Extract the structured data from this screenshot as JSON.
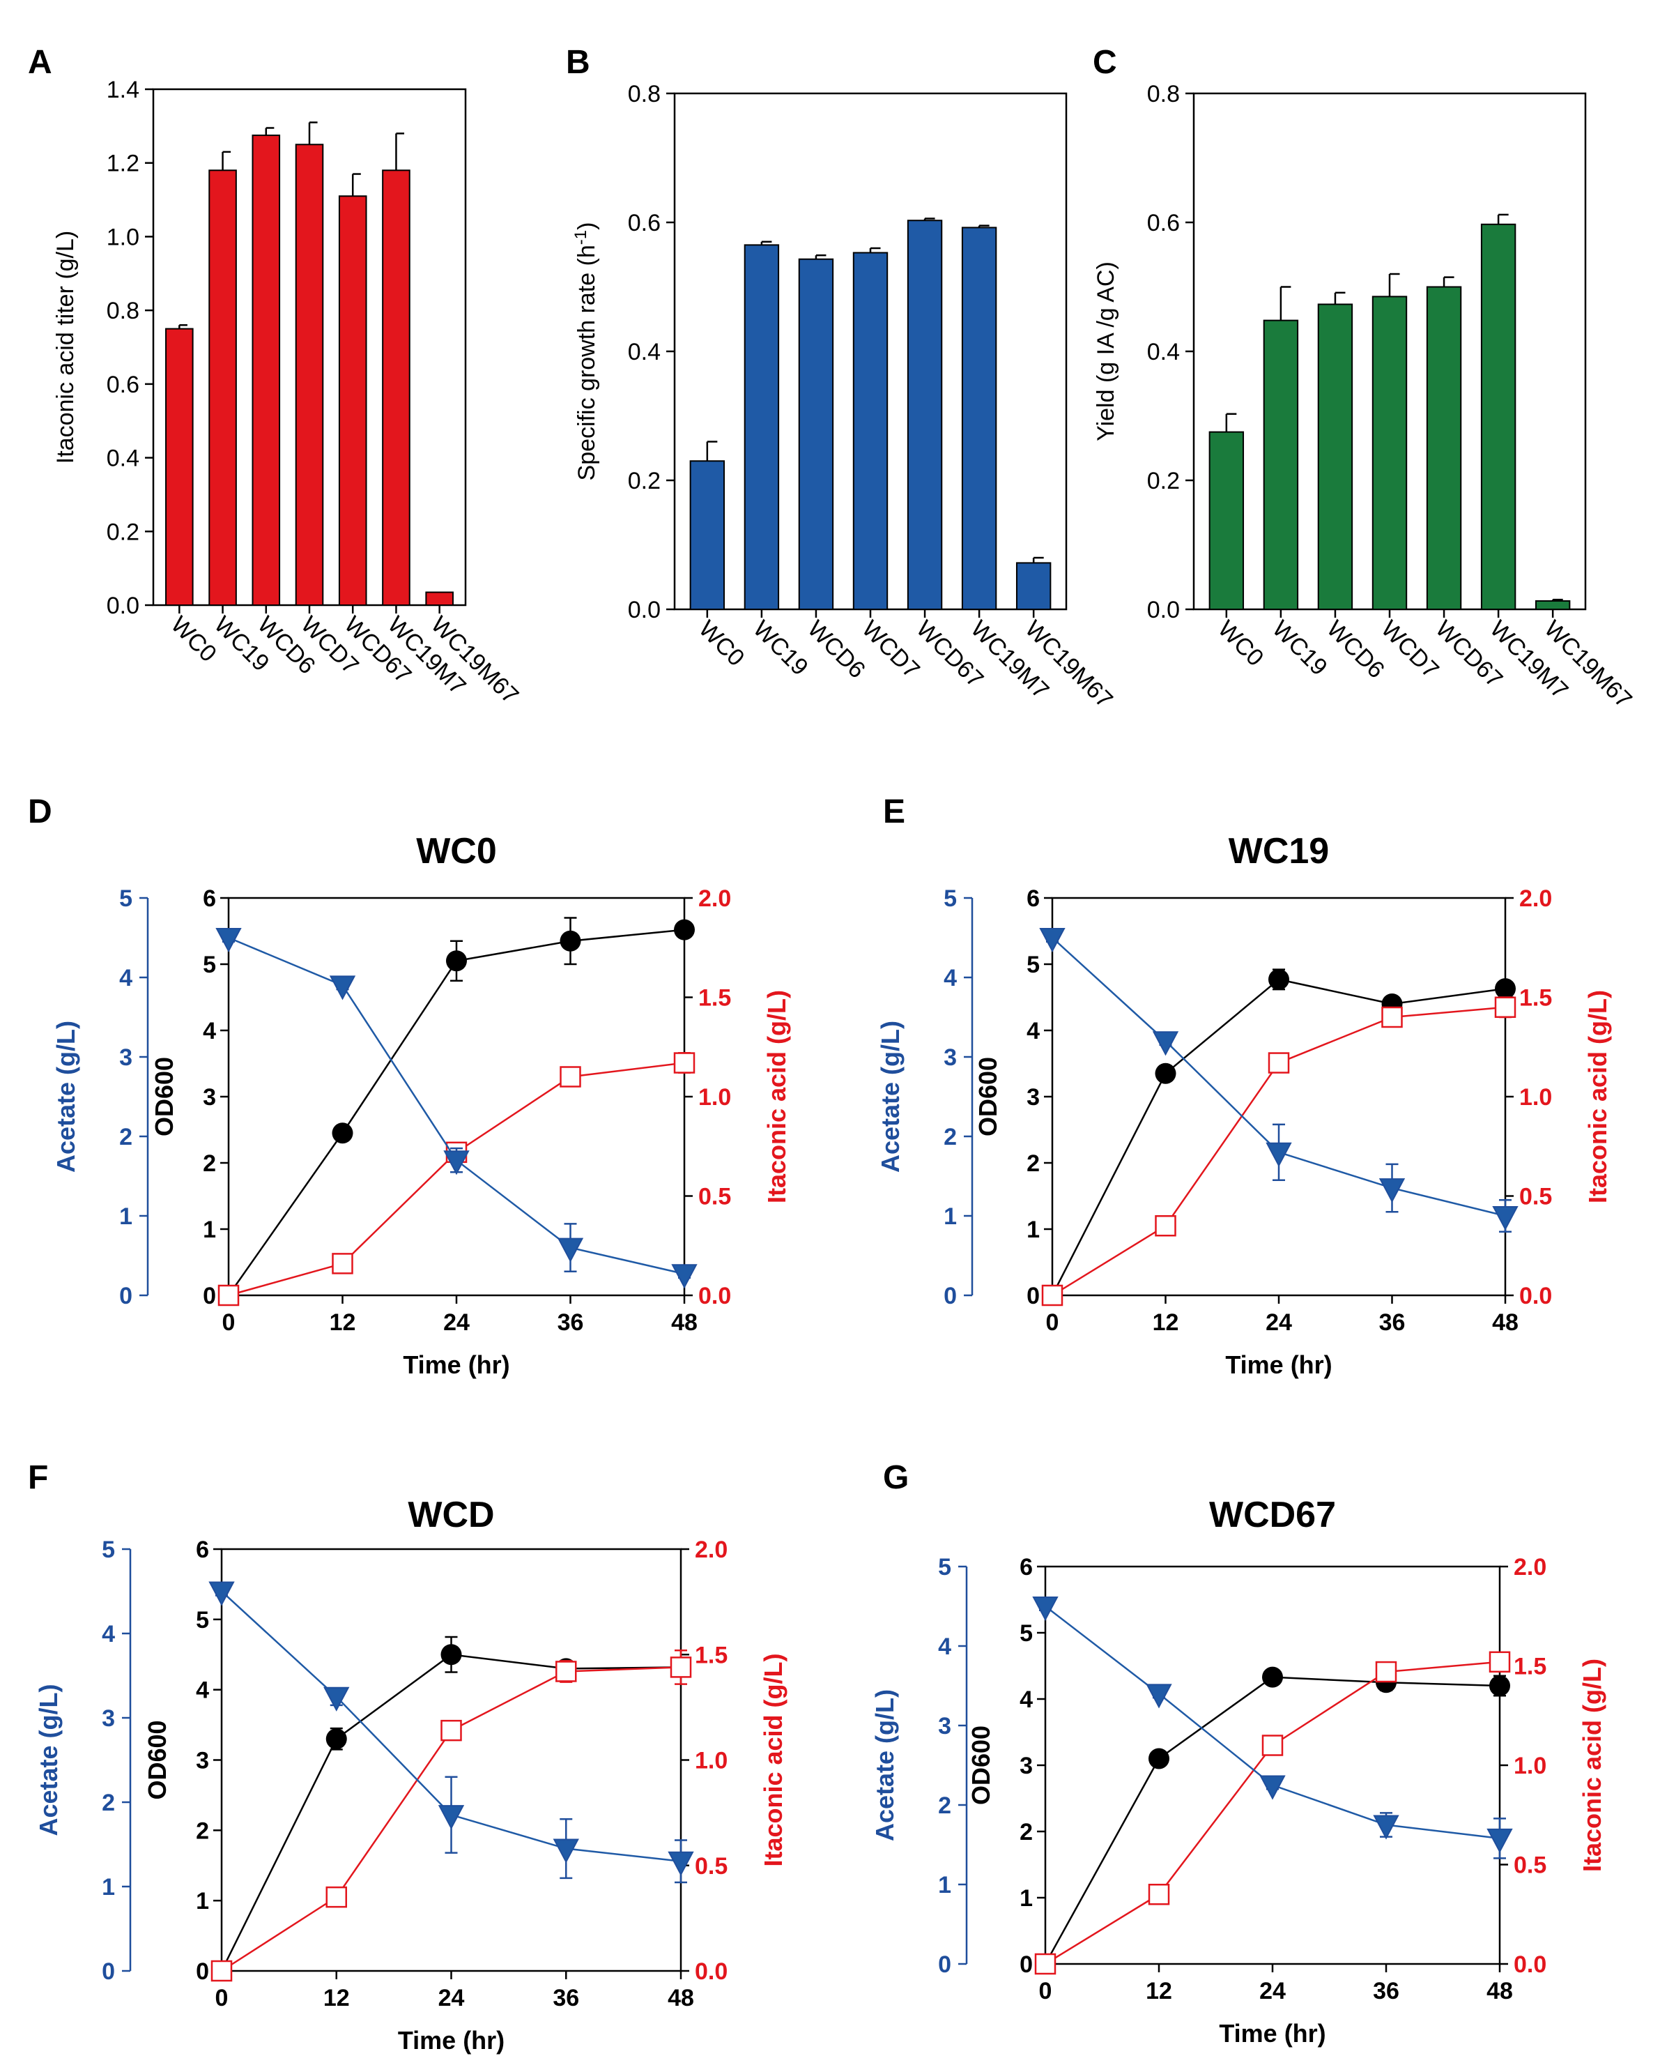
{
  "colors": {
    "red": "#e3161d",
    "blue": "#1f5aa6",
    "green": "#1a7b3c",
    "black": "#000000",
    "acetate_axis": "#1f4e9c"
  },
  "chart_data": [
    {
      "id": "A",
      "panel_label": "A",
      "type": "bar",
      "title": "",
      "ylabel": "Itaconic acid titer (g/L)",
      "ylim": [
        0,
        1.4
      ],
      "yticks": [
        "0.0",
        "0.2",
        "0.4",
        "0.6",
        "0.8",
        "1.0",
        "1.2",
        "1.4"
      ],
      "categories": [
        "WC0",
        "WC19",
        "WCD6",
        "WCD7",
        "WCD67",
        "WC19M7",
        "WC19M67"
      ],
      "values": [
        0.75,
        1.18,
        1.275,
        1.25,
        1.11,
        1.18,
        0.035
      ],
      "errors": [
        0.01,
        0.05,
        0.02,
        0.06,
        0.06,
        0.1,
        0.0
      ],
      "color": "#e3161d"
    },
    {
      "id": "B",
      "panel_label": "B",
      "type": "bar",
      "title": "",
      "ylabel": "Specific growth rate (h",
      "ylabel_sup": "-1",
      "ylabel_end": ")",
      "ylim": [
        0,
        0.8
      ],
      "yticks": [
        "0.0",
        "0.2",
        "0.4",
        "0.6",
        "0.8"
      ],
      "categories": [
        "WC0",
        "WC19",
        "WCD6",
        "WCD7",
        "WCD67",
        "WC19M7",
        "WC19M67"
      ],
      "values": [
        0.23,
        0.565,
        0.543,
        0.553,
        0.603,
        0.592,
        0.072
      ],
      "errors": [
        0.03,
        0.005,
        0.006,
        0.007,
        0.003,
        0.003,
        0.008
      ],
      "color": "#1f5aa6"
    },
    {
      "id": "C",
      "panel_label": "C",
      "type": "bar",
      "title": "",
      "ylabel": "Yield (g IA /g AC)",
      "ylim": [
        0,
        0.8
      ],
      "yticks": [
        "0.0",
        "0.2",
        "0.4",
        "0.6",
        "0.8"
      ],
      "categories": [
        "WC0",
        "WC19",
        "WCD6",
        "WCD7",
        "WCD67",
        "WC19M7",
        "WC19M67"
      ],
      "values": [
        0.275,
        0.448,
        0.473,
        0.485,
        0.5,
        0.597,
        0.013
      ],
      "errors": [
        0.028,
        0.052,
        0.018,
        0.035,
        0.015,
        0.015,
        0.002
      ],
      "color": "#1a7b3c"
    },
    {
      "id": "D",
      "panel_label": "D",
      "type": "line",
      "title": "WC0",
      "xlabel": "Time (hr)",
      "ylabel_left": "OD600",
      "ylabel_acetate": "Acetate (g/L)",
      "ylabel_right": "Itaconic acid (g/L)",
      "x": [
        0,
        12,
        24,
        36,
        48
      ],
      "xticks": [
        "0",
        "12",
        "24",
        "36",
        "48"
      ],
      "od_ylim": [
        0,
        6
      ],
      "od_ticks": [
        "0",
        "1",
        "2",
        "3",
        "4",
        "5",
        "6"
      ],
      "acetate_ylim": [
        0,
        5
      ],
      "acetate_ticks": [
        "0",
        "1",
        "2",
        "3",
        "4",
        "5"
      ],
      "ia_ylim": [
        0,
        2.0
      ],
      "ia_ticks": [
        "0.0",
        "0.5",
        "1.0",
        "1.5",
        "2.0"
      ],
      "series": [
        {
          "kind": "od",
          "values": [
            0.0,
            2.45,
            5.05,
            5.35,
            5.52
          ],
          "errors": [
            0,
            0,
            0.3,
            0.35,
            0.1
          ]
        },
        {
          "kind": "acetate",
          "values": [
            4.5,
            3.9,
            1.7,
            0.6,
            0.27
          ],
          "errors": [
            0.05,
            0.05,
            0.15,
            0.3,
            0.05
          ]
        },
        {
          "kind": "ia",
          "values": [
            0.0,
            0.16,
            0.72,
            1.1,
            1.17
          ],
          "errors": [
            0,
            0.01,
            0.04,
            0.03,
            0.05
          ]
        }
      ]
    },
    {
      "id": "E",
      "panel_label": "E",
      "type": "line",
      "title": "WC19",
      "xlabel": "Time (hr)",
      "ylabel_left": "OD600",
      "ylabel_acetate": "Acetate (g/L)",
      "ylabel_right": "Itaconic acid (g/L)",
      "x": [
        0,
        12,
        24,
        36,
        48
      ],
      "xticks": [
        "0",
        "12",
        "24",
        "36",
        "48"
      ],
      "od_ylim": [
        0,
        6
      ],
      "od_ticks": [
        "0",
        "1",
        "2",
        "3",
        "4",
        "5",
        "6"
      ],
      "acetate_ylim": [
        0,
        5
      ],
      "acetate_ticks": [
        "0",
        "1",
        "2",
        "3",
        "4",
        "5"
      ],
      "ia_ylim": [
        0,
        2.0
      ],
      "ia_ticks": [
        "0.0",
        "0.5",
        "1.0",
        "1.5",
        "2.0"
      ],
      "series": [
        {
          "kind": "od",
          "values": [
            0.0,
            3.35,
            4.77,
            4.4,
            4.63
          ],
          "errors": [
            0,
            0.1,
            0.15,
            0.05,
            0.05
          ]
        },
        {
          "kind": "acetate",
          "values": [
            4.5,
            3.2,
            1.8,
            1.35,
            1.0
          ],
          "errors": [
            0.05,
            0.05,
            0.35,
            0.3,
            0.2
          ]
        },
        {
          "kind": "ia",
          "values": [
            0.0,
            0.35,
            1.17,
            1.4,
            1.45
          ],
          "errors": [
            0,
            0.01,
            0.02,
            0.04,
            0.05
          ]
        }
      ]
    },
    {
      "id": "F",
      "panel_label": "F",
      "type": "line",
      "title": "WCD",
      "xlabel": "Time (hr)",
      "ylabel_left": "OD600",
      "ylabel_acetate": "Acetate (g/L)",
      "ylabel_right": "Itaconic acid (g/L)",
      "x": [
        0,
        12,
        24,
        36,
        48
      ],
      "xticks": [
        "0",
        "12",
        "24",
        "36",
        "48"
      ],
      "od_ylim": [
        0,
        6
      ],
      "od_ticks": [
        "0",
        "1",
        "2",
        "3",
        "4",
        "5",
        "6"
      ],
      "acetate_ylim": [
        0,
        5
      ],
      "acetate_ticks": [
        "0",
        "1",
        "2",
        "3",
        "4",
        "5"
      ],
      "ia_ylim": [
        0,
        2.0
      ],
      "ia_ticks": [
        "0.0",
        "0.5",
        "1.0",
        "1.5",
        "2.0"
      ],
      "series": [
        {
          "kind": "od",
          "values": [
            0.0,
            3.3,
            4.5,
            4.3,
            4.32
          ],
          "errors": [
            0,
            0.15,
            0.25,
            0.1,
            0.1
          ]
        },
        {
          "kind": "acetate",
          "values": [
            4.5,
            3.25,
            1.85,
            1.45,
            1.3
          ],
          "errors": [
            0.05,
            0.1,
            0.45,
            0.35,
            0.25
          ]
        },
        {
          "kind": "ia",
          "values": [
            0.0,
            0.35,
            1.14,
            1.42,
            1.44
          ],
          "errors": [
            0,
            0.01,
            0.04,
            0.05,
            0.08
          ]
        }
      ]
    },
    {
      "id": "G",
      "panel_label": "G",
      "type": "line",
      "title": "WCD67",
      "xlabel": "Time (hr)",
      "ylabel_left": "OD600",
      "ylabel_acetate": "Acetate (g/L)",
      "ylabel_right": "Itaconic acid (g/L)",
      "x": [
        0,
        12,
        24,
        36,
        48
      ],
      "xticks": [
        "0",
        "12",
        "24",
        "36",
        "48"
      ],
      "od_ylim": [
        0,
        6
      ],
      "od_ticks": [
        "0",
        "1",
        "2",
        "3",
        "4",
        "5",
        "6"
      ],
      "acetate_ylim": [
        0,
        5
      ],
      "acetate_ticks": [
        "0",
        "1",
        "2",
        "3",
        "4",
        "5"
      ],
      "ia_ylim": [
        0,
        2.0
      ],
      "ia_ticks": [
        "0.0",
        "0.5",
        "1.0",
        "1.5",
        "2.0"
      ],
      "series": [
        {
          "kind": "od",
          "values": [
            0.0,
            3.1,
            4.33,
            4.25,
            4.2
          ],
          "errors": [
            0,
            0.05,
            0.05,
            0.12,
            0.15
          ]
        },
        {
          "kind": "acetate",
          "values": [
            4.5,
            3.4,
            2.25,
            1.75,
            1.58
          ],
          "errors": [
            0.05,
            0.05,
            0.05,
            0.15,
            0.25
          ]
        },
        {
          "kind": "ia",
          "values": [
            0.0,
            0.35,
            1.1,
            1.47,
            1.52
          ],
          "errors": [
            0,
            0.01,
            0.04,
            0.02,
            0.03
          ]
        }
      ]
    }
  ]
}
